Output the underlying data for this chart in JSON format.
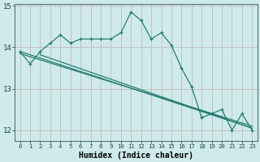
{
  "xlabel": "Humidex (Indice chaleur)",
  "bg_color": "#ceeaea",
  "line_color": "#1a7a6e",
  "grid_color_v": "#c8b8b8",
  "grid_color_h": "#c8b8b8",
  "xmin": -0.5,
  "xmax": 23.5,
  "ymin": 11.75,
  "ymax": 15.05,
  "yticks": [
    12,
    13,
    14,
    15
  ],
  "xticks": [
    0,
    1,
    2,
    3,
    4,
    5,
    6,
    7,
    8,
    9,
    10,
    11,
    12,
    13,
    14,
    15,
    16,
    17,
    18,
    19,
    20,
    21,
    22,
    23
  ],
  "main_series": [
    13.9,
    13.6,
    13.9,
    14.1,
    14.3,
    14.1,
    14.2,
    14.2,
    14.2,
    14.2,
    14.35,
    14.85,
    14.65,
    14.2,
    14.35,
    14.05,
    13.5,
    13.05,
    12.3,
    12.4,
    12.5,
    12.0,
    12.4,
    12.0
  ],
  "regression_lines": [
    {
      "x0": 0,
      "y0": 13.9,
      "x1": 23,
      "y1": 12.05
    },
    {
      "x0": 0,
      "y0": 13.85,
      "x1": 23,
      "y1": 12.1
    },
    {
      "x0": 2,
      "y0": 13.82,
      "x1": 23,
      "y1": 12.05
    }
  ]
}
